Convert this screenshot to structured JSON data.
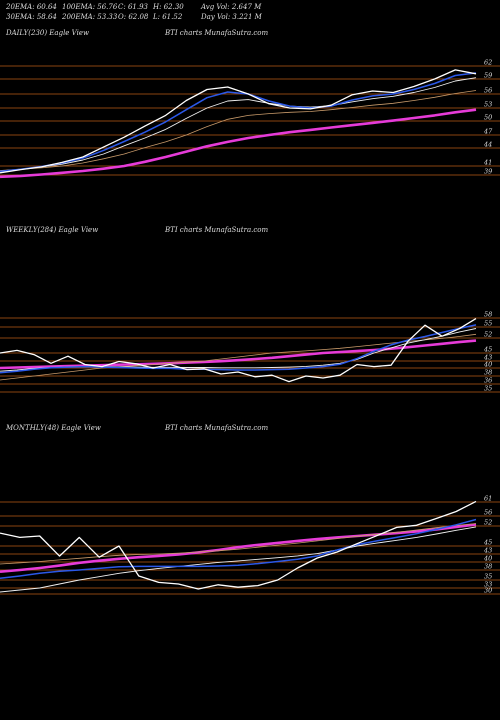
{
  "header": {
    "row1": [
      "20EMA: 60.64",
      "100EMA: 56.76",
      "C: 61.93",
      "H: 62.30",
      "Avg Vol: 2.647 M"
    ],
    "row2": [
      "30EMA: 58.64",
      "200EMA: 53.33",
      "O: 62.08",
      "L: 61.52",
      "Day Vol: 3.221 M"
    ]
  },
  "colors": {
    "background": "#000000",
    "grid": "#b85a14",
    "price": "#ffffff",
    "ema_fast": "#2b58e8",
    "ema_mid": "#f0f0f0",
    "ema_slow": "#c89a6a",
    "ema_long": "#e63bd8"
  },
  "chart_data": [
    {
      "type": "line",
      "panel": "daily",
      "title": "DAILY(230) Eagle  View",
      "subtitle": "BTI charts MunafaSutra.com",
      "yticks": [
        62,
        59,
        56,
        53,
        50,
        47,
        44,
        41,
        39
      ],
      "ylim": [
        38,
        63
      ],
      "x": [
        0,
        10,
        20,
        30,
        40,
        50,
        60,
        70,
        80,
        90,
        100,
        110,
        120,
        130,
        140,
        150,
        160,
        170,
        180,
        190,
        200,
        210,
        220,
        230
      ],
      "series": [
        {
          "values": [
            39.5,
            40.2,
            40.8,
            41.6,
            42.5,
            44.2,
            46.5,
            48.9,
            51.3,
            54.6,
            56.9,
            57.4,
            56.0,
            53.9,
            53.0,
            52.8,
            53.6,
            55.8,
            56.6,
            56.3,
            57.5,
            59.0,
            61.1,
            60.2
          ]
        },
        {
          "values": [
            39.8,
            40.3,
            40.9,
            41.5,
            42.3,
            43.6,
            45.5,
            47.6,
            49.8,
            52.6,
            55.2,
            56.4,
            56.0,
            54.5,
            53.4,
            53.0,
            53.4,
            54.7,
            55.6,
            56.0,
            56.9,
            58.1,
            59.8,
            60.4
          ]
        },
        {
          "values": [
            39.9,
            40.3,
            40.8,
            41.3,
            42.0,
            43.0,
            44.5,
            46.3,
            48.2,
            50.6,
            53.0,
            54.5,
            54.8,
            54.0,
            53.4,
            53.2,
            53.5,
            54.3,
            55.0,
            55.5,
            56.3,
            57.3,
            58.6,
            59.3
          ]
        },
        {
          "values": [
            40.0,
            40.3,
            40.6,
            41.0,
            41.5,
            42.2,
            43.0,
            44.1,
            45.4,
            47.0,
            48.8,
            50.4,
            51.3,
            51.7,
            52.0,
            52.2,
            52.6,
            53.1,
            53.6,
            54.0,
            54.6,
            55.3,
            56.1,
            56.7
          ]
        },
        {
          "values": [
            38.6,
            38.8,
            39.1,
            39.5,
            39.9,
            40.4,
            41.0,
            41.7,
            42.5,
            43.4,
            44.4,
            45.4,
            46.3,
            47.0,
            47.6,
            48.1,
            48.6,
            49.1,
            49.6,
            50.1,
            50.7,
            51.3,
            52.0,
            52.6
          ]
        }
      ]
    },
    {
      "type": "line",
      "panel": "weekly",
      "title": "WEEKLY(284) Eagle  View",
      "subtitle": "BTI charts MunafaSutra.com",
      "yticks": [
        58,
        55,
        52,
        45,
        43,
        40,
        38,
        36,
        35
      ],
      "ylim": [
        33,
        60
      ],
      "x": [
        0,
        10,
        20,
        30,
        40,
        50,
        60,
        70,
        80,
        90,
        100,
        110,
        120,
        130,
        140,
        150,
        160,
        170,
        180,
        190,
        200,
        210,
        220,
        230,
        240,
        250,
        260,
        270,
        280
      ],
      "series": [
        {
          "values": [
            45.0,
            46.2,
            44.6,
            42.0,
            44.2,
            41.5,
            40.6,
            42.8,
            41.8,
            40.0,
            41.5,
            39.6,
            39.8,
            38.5,
            39.0,
            37.8,
            38.2,
            36.6,
            38.0,
            37.5,
            38.2,
            41.5,
            40.6,
            41.2,
            50.5,
            55.6,
            52.5,
            54.5,
            57.8
          ]
        },
        {
          "values": [
            38.8,
            39.2,
            39.7,
            40.1,
            40.4,
            40.6,
            40.4,
            40.2,
            40.0,
            39.9,
            39.9,
            39.7,
            39.7,
            39.6,
            39.5,
            39.5,
            39.6,
            39.7,
            40.0,
            40.6,
            41.6,
            43.6,
            45.8,
            48.8,
            51.0,
            52.4,
            53.5,
            54.6,
            55.7
          ]
        },
        {
          "values": [
            39.2,
            39.5,
            39.9,
            40.2,
            40.5,
            40.6,
            40.6,
            40.5,
            40.4,
            40.3,
            40.3,
            40.2,
            40.2,
            40.1,
            40.1,
            40.1,
            40.2,
            40.4,
            40.7,
            41.2,
            42.0,
            43.4,
            45.0,
            47.4,
            49.6,
            51.2,
            52.5,
            53.6,
            54.6
          ]
        },
        {
          "values": [
            37.0,
            37.5,
            38.0,
            38.5,
            39.0,
            39.5,
            40.0,
            40.5,
            41.0,
            41.5,
            42.0,
            42.5,
            43.0,
            43.5,
            44.0,
            44.5,
            45.0,
            45.5,
            46.0,
            46.6,
            47.2,
            48.0,
            48.8,
            49.6,
            50.4,
            51.1,
            51.8,
            52.4,
            53.0
          ]
        },
        {
          "values": [
            40.0,
            40.2,
            40.4,
            40.6,
            40.8,
            41.0,
            41.2,
            41.4,
            41.6,
            41.8,
            42.0,
            42.3,
            42.6,
            42.9,
            43.2,
            43.5,
            43.8,
            44.2,
            44.6,
            45.0,
            45.4,
            45.9,
            46.4,
            47.0,
            47.7,
            48.5,
            49.3,
            50.1,
            50.8
          ]
        }
      ]
    },
    {
      "type": "line",
      "panel": "monthly",
      "title": "MONTHLY(48) Eagle  View",
      "subtitle": "BTI charts MunafaSutra.com",
      "yticks": [
        61,
        56,
        52,
        45,
        43,
        40,
        38,
        35,
        33,
        30
      ],
      "ylim": [
        29,
        63
      ],
      "x": [
        0,
        2,
        4,
        6,
        8,
        10,
        12,
        14,
        16,
        18,
        20,
        22,
        24,
        26,
        28,
        30,
        32,
        34,
        36,
        38,
        40,
        42,
        44,
        46,
        48
      ],
      "series": [
        {
          "values": [
            49.5,
            48.0,
            48.5,
            42.2,
            48.0,
            41.8,
            45.0,
            36.2,
            34.4,
            34.0,
            32.5,
            33.8,
            33.2,
            33.6,
            35.0,
            38.5,
            41.5,
            43.5,
            45.8,
            48.6,
            51.5,
            52.3,
            55.0,
            57.6,
            61.2
          ]
        },
        {
          "values": [
            35.5,
            36.2,
            37.0,
            37.6,
            38.0,
            38.4,
            38.8,
            38.9,
            38.9,
            38.9,
            38.9,
            39.0,
            39.2,
            39.6,
            40.2,
            41.0,
            42.3,
            44.0,
            45.5,
            46.8,
            48.0,
            49.3,
            50.8,
            52.5,
            54.6
          ]
        },
        {
          "values": [
            31.0,
            32.0,
            33.0,
            34.0,
            35.0,
            36.0,
            37.0,
            37.8,
            38.4,
            38.9,
            39.4,
            39.9,
            40.4,
            41.0,
            41.6,
            42.3,
            43.1,
            44.0,
            45.0,
            46.0,
            47.0,
            48.0,
            49.2,
            50.5,
            51.7
          ]
        },
        {
          "values": [
            39.5,
            39.8,
            40.2,
            40.8,
            41.4,
            42.0,
            42.5,
            42.8,
            43.0,
            43.2,
            43.5,
            43.8,
            44.2,
            44.7,
            45.3,
            46.0,
            46.8,
            47.6,
            48.4,
            49.1,
            49.8,
            50.6,
            51.4,
            52.2,
            53.0
          ]
        },
        {
          "values": [
            37.5,
            38.0,
            38.5,
            39.1,
            39.8,
            40.5,
            41.2,
            41.8,
            42.3,
            42.8,
            43.4,
            44.0,
            44.7,
            45.4,
            46.1,
            46.8,
            47.4,
            48.0,
            48.5,
            49.0,
            49.5,
            50.1,
            50.8,
            51.7,
            52.6
          ]
        }
      ]
    }
  ]
}
